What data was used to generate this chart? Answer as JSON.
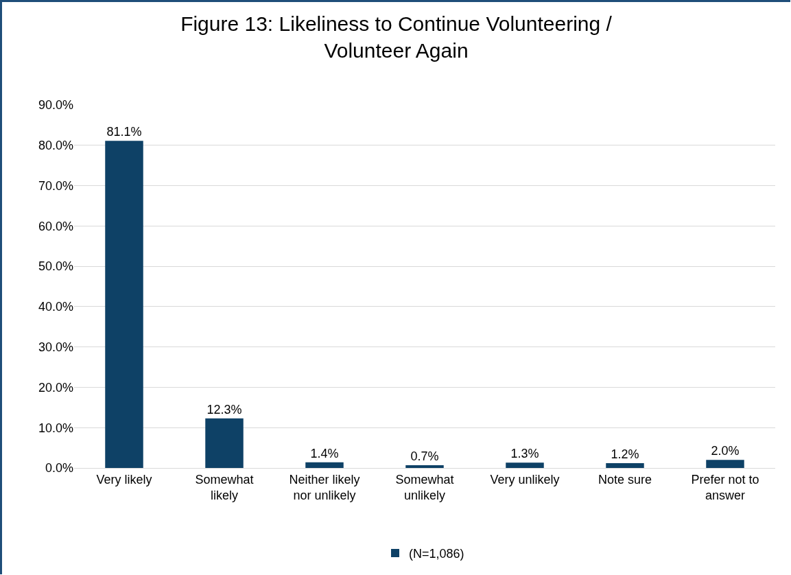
{
  "chart_data": {
    "type": "bar",
    "title": "Figure 13: Likeliness to Continue Volunteering / Volunteer Again",
    "categories": [
      "Very likely",
      "Somewhat likely",
      "Neither likely nor unlikely",
      "Somewhat unlikely",
      "Very unlikely",
      "Note sure",
      "Prefer not to answer"
    ],
    "series": [
      {
        "name": "(N=1,086)",
        "color": "#0e4166",
        "values": [
          81.1,
          12.3,
          1.4,
          0.7,
          1.3,
          1.2,
          2.0
        ],
        "value_labels": [
          "81.1%",
          "12.3%",
          "1.4%",
          "0.7%",
          "1.3%",
          "1.2%",
          "2.0%"
        ]
      }
    ],
    "ylim": [
      0,
      90
    ],
    "yticks": [
      {
        "value": 0,
        "label": "0.0%"
      },
      {
        "value": 10,
        "label": "10.0%"
      },
      {
        "value": 20,
        "label": "20.0%"
      },
      {
        "value": 30,
        "label": "30.0%"
      },
      {
        "value": 40,
        "label": "40.0%"
      },
      {
        "value": 50,
        "label": "50.0%"
      },
      {
        "value": 60,
        "label": "60.0%"
      },
      {
        "value": 70,
        "label": "70.0%"
      },
      {
        "value": 80,
        "label": "80.0%"
      },
      {
        "value": 90,
        "label": "90.0%"
      }
    ],
    "grid": "y",
    "legend": "bottom"
  }
}
